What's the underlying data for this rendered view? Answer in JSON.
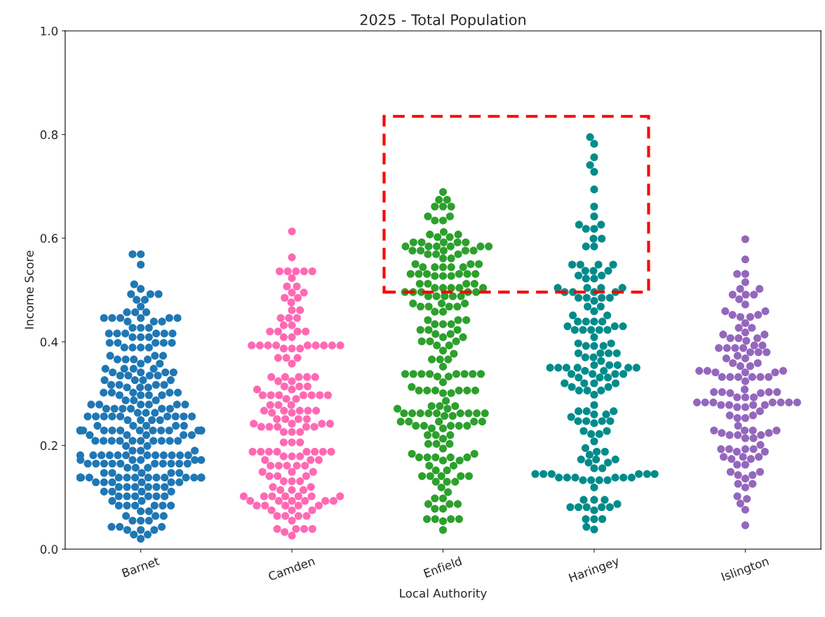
{
  "chart_data": {
    "type": "scatter",
    "title": "2025 - Total Population",
    "xlabel": "Local Authority",
    "ylabel": "Income Score",
    "categories": [
      "Barnet",
      "Camden",
      "Enfield",
      "Haringey",
      "Islington"
    ],
    "ylim": [
      0,
      1.0
    ],
    "yticks": [
      {
        "value": 0,
        "label": "0.0"
      },
      0.2,
      0.4,
      0.6,
      0.8,
      {
        "value": 1.0,
        "label": "1.0"
      }
    ],
    "marker": "circle",
    "series": [
      {
        "color": "#1f77b4",
        "x": [
          "Barnet",
          "Barnet",
          "Barnet",
          "Barnet",
          "Barnet",
          "Barnet",
          "Barnet",
          "Barnet",
          "Barnet",
          "Barnet",
          "Barnet",
          "Barnet",
          "Barnet",
          "Barnet",
          "Barnet",
          "Barnet",
          "Barnet",
          "Barnet",
          "Barnet",
          "Barnet",
          "Barnet",
          "Barnet",
          "Barnet",
          "Barnet",
          "Barnet",
          "Barnet",
          "Barnet",
          "Barnet",
          "Barnet",
          "Barnet",
          "Barnet",
          "Barnet",
          "Barnet",
          "Barnet",
          "Barnet",
          "Barnet",
          "Barnet",
          "Barnet",
          "Barnet",
          "Barnet",
          "Barnet",
          "Barnet",
          "Barnet",
          "Barnet",
          "Barnet",
          "Barnet",
          "Barnet",
          "Barnet",
          "Barnet",
          "Barnet",
          "Barnet",
          "Barnet",
          "Barnet",
          "Barnet",
          "Barnet",
          "Barnet",
          "Barnet",
          "Barnet",
          "Barnet",
          "Barnet",
          "Barnet",
          "Barnet",
          "Barnet",
          "Barnet",
          "Barnet",
          "Barnet",
          "Barnet",
          "Barnet",
          "Barnet",
          "Barnet",
          "Barnet",
          "Barnet",
          "Barnet",
          "Barnet",
          "Barnet",
          "Barnet",
          "Barnet",
          "Barnet",
          "Barnet",
          "Barnet",
          "Barnet",
          "Barnet",
          "Barnet",
          "Barnet",
          "Barnet",
          "Barnet",
          "Barnet",
          "Barnet",
          "Barnet",
          "Barnet",
          "Barnet",
          "Barnet",
          "Barnet",
          "Barnet",
          "Barnet",
          "Barnet",
          "Barnet",
          "Barnet",
          "Barnet",
          "Barnet",
          "Barnet",
          "Barnet",
          "Barnet",
          "Barnet",
          "Barnet",
          "Barnet",
          "Barnet",
          "Barnet",
          "Barnet",
          "Barnet",
          "Barnet",
          "Barnet",
          "Barnet",
          "Barnet",
          "Barnet",
          "Barnet",
          "Barnet",
          "Barnet",
          "Barnet",
          "Barnet",
          "Barnet",
          "Barnet",
          "Barnet",
          "Barnet",
          "Barnet",
          "Barnet",
          "Barnet",
          "Barnet",
          "Barnet",
          "Barnet",
          "Barnet",
          "Barnet",
          "Barnet",
          "Barnet",
          "Barnet",
          "Barnet",
          "Barnet",
          "Barnet",
          "Barnet",
          "Barnet",
          "Barnet",
          "Barnet",
          "Barnet",
          "Barnet",
          "Barnet",
          "Barnet",
          "Barnet",
          "Barnet",
          "Barnet",
          "Barnet",
          "Barnet",
          "Barnet",
          "Barnet",
          "Barnet",
          "Barnet",
          "Barnet",
          "Barnet",
          "Barnet",
          "Barnet",
          "Barnet",
          "Barnet",
          "Barnet",
          "Barnet",
          "Barnet",
          "Barnet",
          "Barnet",
          "Barnet",
          "Barnet",
          "Barnet",
          "Barnet",
          "Barnet",
          "Barnet",
          "Barnet",
          "Barnet",
          "Barnet",
          "Barnet",
          "Barnet",
          "Barnet",
          "Barnet",
          "Barnet",
          "Barnet",
          "Barnet",
          "Barnet",
          "Barnet",
          "Barnet",
          "Barnet",
          "Barnet",
          "Barnet",
          "Barnet",
          "Barnet",
          "Barnet",
          "Barnet",
          "Barnet",
          "Barnet",
          "Barnet",
          "Barnet",
          "Barnet",
          "Barnet",
          "Barnet",
          "Barnet",
          "Barnet",
          "Barnet",
          "Barnet",
          "Barnet",
          "Barnet",
          "Barnet",
          "Barnet",
          "Barnet",
          "Barnet",
          "Barnet",
          "Barnet",
          "Barnet",
          "Barnet",
          "Barnet",
          "Barnet",
          "Barnet",
          "Barnet",
          "Barnet",
          "Barnet",
          "Barnet",
          "Barnet",
          "Barnet",
          "Barnet",
          "Barnet",
          "Barnet",
          "Barnet",
          "Barnet",
          "Barnet",
          "Barnet",
          "Barnet",
          "Barnet",
          "Barnet",
          "Barnet",
          "Barnet",
          "Barnet",
          "Barnet",
          "Barnet",
          "Barnet",
          "Barnet",
          "Barnet",
          "Barnet",
          "Barnet",
          "Barnet",
          "Barnet",
          "Barnet",
          "Barnet",
          "Barnet",
          "Barnet",
          "Barnet",
          "Barnet",
          "Barnet",
          "Barnet",
          "Barnet",
          "Barnet"
        ],
        "values": [
          0.569,
          0.569,
          0.549,
          0.511,
          0.502,
          0.492,
          0.492,
          0.492,
          0.481,
          0.481,
          0.468,
          0.457,
          0.457,
          0.457,
          0.446,
          0.446,
          0.446,
          0.446,
          0.446,
          0.446,
          0.439,
          0.439,
          0.439,
          0.427,
          0.427,
          0.427,
          0.416,
          0.416,
          0.416,
          0.416,
          0.416,
          0.416,
          0.409,
          0.409,
          0.409,
          0.398,
          0.398,
          0.398,
          0.398,
          0.398,
          0.389,
          0.389,
          0.389,
          0.389,
          0.373,
          0.373,
          0.373,
          0.366,
          0.366,
          0.366,
          0.366,
          0.358,
          0.358,
          0.348,
          0.348,
          0.348,
          0.348,
          0.341,
          0.341,
          0.341,
          0.341,
          0.335,
          0.335,
          0.335,
          0.335,
          0.326,
          0.326,
          0.326,
          0.326,
          0.317,
          0.317,
          0.317,
          0.317,
          0.312,
          0.312,
          0.312,
          0.302,
          0.302,
          0.302,
          0.302,
          0.302,
          0.297,
          0.297,
          0.297,
          0.297,
          0.287,
          0.287,
          0.287,
          0.279,
          0.279,
          0.279,
          0.279,
          0.279,
          0.279,
          0.271,
          0.271,
          0.271,
          0.271,
          0.271,
          0.271,
          0.263,
          0.263,
          0.263,
          0.256,
          0.256,
          0.256,
          0.256,
          0.256,
          0.256,
          0.256,
          0.256,
          0.256,
          0.249,
          0.249,
          0.249,
          0.249,
          0.238,
          0.238,
          0.238,
          0.238,
          0.238,
          0.229,
          0.229,
          0.229,
          0.229,
          0.229,
          0.229,
          0.229,
          0.229,
          0.229,
          0.229,
          0.229,
          0.229,
          0.229,
          0.229,
          0.229,
          0.22,
          0.22,
          0.22,
          0.22,
          0.22,
          0.209,
          0.209,
          0.209,
          0.209,
          0.209,
          0.209,
          0.209,
          0.209,
          0.209,
          0.209,
          0.199,
          0.199,
          0.19,
          0.19,
          0.19,
          0.181,
          0.181,
          0.181,
          0.181,
          0.181,
          0.181,
          0.181,
          0.181,
          0.181,
          0.181,
          0.181,
          0.181,
          0.172,
          0.172,
          0.172,
          0.172,
          0.172,
          0.165,
          0.165,
          0.165,
          0.165,
          0.165,
          0.165,
          0.165,
          0.165,
          0.165,
          0.165,
          0.157,
          0.157,
          0.157,
          0.147,
          0.147,
          0.147,
          0.147,
          0.147,
          0.138,
          0.138,
          0.138,
          0.138,
          0.138,
          0.138,
          0.138,
          0.138,
          0.138,
          0.138,
          0.138,
          0.138,
          0.138,
          0.138,
          0.138,
          0.138,
          0.129,
          0.129,
          0.129,
          0.129,
          0.129,
          0.129,
          0.12,
          0.12,
          0.12,
          0.12,
          0.12,
          0.12,
          0.111,
          0.111,
          0.111,
          0.111,
          0.102,
          0.102,
          0.102,
          0.102,
          0.102,
          0.102,
          0.093,
          0.093,
          0.084,
          0.084,
          0.084,
          0.084,
          0.084,
          0.084,
          0.073,
          0.073,
          0.064,
          0.064,
          0.064,
          0.055,
          0.055,
          0.055,
          0.043,
          0.043,
          0.043,
          0.037,
          0.037,
          0.037,
          0.028,
          0.028,
          0.02
        ]
      },
      {
        "color": "#ff69b4",
        "x": [
          "Camden",
          "Camden",
          "Camden",
          "Camden",
          "Camden",
          "Camden",
          "Camden",
          "Camden",
          "Camden",
          "Camden",
          "Camden",
          "Camden",
          "Camden",
          "Camden",
          "Camden",
          "Camden",
          "Camden",
          "Camden",
          "Camden",
          "Camden",
          "Camden",
          "Camden",
          "Camden",
          "Camden",
          "Camden",
          "Camden",
          "Camden",
          "Camden",
          "Camden",
          "Camden",
          "Camden",
          "Camden",
          "Camden",
          "Camden",
          "Camden",
          "Camden",
          "Camden",
          "Camden",
          "Camden",
          "Camden",
          "Camden",
          "Camden",
          "Camden",
          "Camden",
          "Camden",
          "Camden",
          "Camden",
          "Camden",
          "Camden",
          "Camden",
          "Camden",
          "Camden",
          "Camden",
          "Camden",
          "Camden",
          "Camden",
          "Camden",
          "Camden",
          "Camden",
          "Camden",
          "Camden",
          "Camden",
          "Camden",
          "Camden",
          "Camden",
          "Camden",
          "Camden",
          "Camden",
          "Camden",
          "Camden",
          "Camden",
          "Camden",
          "Camden",
          "Camden",
          "Camden",
          "Camden",
          "Camden",
          "Camden",
          "Camden",
          "Camden",
          "Camden",
          "Camden",
          "Camden",
          "Camden",
          "Camden",
          "Camden",
          "Camden",
          "Camden",
          "Camden",
          "Camden",
          "Camden",
          "Camden",
          "Camden",
          "Camden",
          "Camden",
          "Camden",
          "Camden",
          "Camden",
          "Camden",
          "Camden",
          "Camden",
          "Camden",
          "Camden",
          "Camden",
          "Camden",
          "Camden",
          "Camden",
          "Camden",
          "Camden",
          "Camden",
          "Camden",
          "Camden",
          "Camden",
          "Camden",
          "Camden",
          "Camden",
          "Camden",
          "Camden",
          "Camden",
          "Camden",
          "Camden",
          "Camden",
          "Camden",
          "Camden",
          "Camden",
          "Camden",
          "Camden",
          "Camden",
          "Camden",
          "Camden",
          "Camden",
          "Camden",
          "Camden",
          "Camden",
          "Camden",
          "Camden",
          "Camden",
          "Camden",
          "Camden",
          "Camden",
          "Camden",
          "Camden",
          "Camden",
          "Camden",
          "Camden",
          "Camden",
          "Camden",
          "Camden",
          "Camden",
          "Camden",
          "Camden",
          "Camden",
          "Camden",
          "Camden",
          "Camden",
          "Camden",
          "Camden",
          "Camden",
          "Camden"
        ],
        "values": [
          0.613,
          0.563,
          0.536,
          0.536,
          0.536,
          0.536,
          0.536,
          0.523,
          0.507,
          0.507,
          0.495,
          0.495,
          0.485,
          0.485,
          0.476,
          0.461,
          0.461,
          0.446,
          0.446,
          0.446,
          0.432,
          0.432,
          0.42,
          0.42,
          0.42,
          0.42,
          0.409,
          0.409,
          0.393,
          0.393,
          0.393,
          0.393,
          0.393,
          0.393,
          0.393,
          0.393,
          0.393,
          0.387,
          0.387,
          0.387,
          0.369,
          0.369,
          0.369,
          0.358,
          0.332,
          0.332,
          0.332,
          0.332,
          0.332,
          0.324,
          0.324,
          0.314,
          0.314,
          0.314,
          0.308,
          0.308,
          0.297,
          0.297,
          0.297,
          0.297,
          0.297,
          0.297,
          0.297,
          0.29,
          0.29,
          0.278,
          0.278,
          0.278,
          0.267,
          0.267,
          0.267,
          0.267,
          0.267,
          0.263,
          0.263,
          0.251,
          0.251,
          0.251,
          0.251,
          0.242,
          0.242,
          0.242,
          0.242,
          0.236,
          0.236,
          0.236,
          0.236,
          0.236,
          0.226,
          0.226,
          0.226,
          0.206,
          0.206,
          0.206,
          0.188,
          0.188,
          0.188,
          0.188,
          0.188,
          0.188,
          0.188,
          0.188,
          0.179,
          0.179,
          0.179,
          0.172,
          0.172,
          0.172,
          0.161,
          0.161,
          0.161,
          0.161,
          0.161,
          0.149,
          0.149,
          0.149,
          0.141,
          0.141,
          0.141,
          0.131,
          0.131,
          0.131,
          0.12,
          0.12,
          0.114,
          0.114,
          0.114,
          0.102,
          0.102,
          0.102,
          0.102,
          0.102,
          0.102,
          0.102,
          0.093,
          0.093,
          0.093,
          0.093,
          0.093,
          0.093,
          0.084,
          0.084,
          0.084,
          0.084,
          0.084,
          0.075,
          0.075,
          0.075,
          0.064,
          0.064,
          0.064,
          0.064,
          0.055,
          0.039,
          0.039,
          0.039,
          0.039,
          0.033,
          0.026
        ]
      },
      {
        "color": "#2ca02c",
        "x": [
          "Enfield",
          "Enfield",
          "Enfield",
          "Enfield",
          "Enfield",
          "Enfield",
          "Enfield",
          "Enfield",
          "Enfield",
          "Enfield",
          "Enfield",
          "Enfield",
          "Enfield",
          "Enfield",
          "Enfield",
          "Enfield",
          "Enfield",
          "Enfield",
          "Enfield",
          "Enfield",
          "Enfield",
          "Enfield",
          "Enfield",
          "Enfield",
          "Enfield",
          "Enfield",
          "Enfield",
          "Enfield",
          "Enfield",
          "Enfield",
          "Enfield",
          "Enfield",
          "Enfield",
          "Enfield",
          "Enfield",
          "Enfield",
          "Enfield",
          "Enfield",
          "Enfield",
          "Enfield",
          "Enfield",
          "Enfield",
          "Enfield",
          "Enfield",
          "Enfield",
          "Enfield",
          "Enfield",
          "Enfield",
          "Enfield",
          "Enfield",
          "Enfield",
          "Enfield",
          "Enfield",
          "Enfield",
          "Enfield",
          "Enfield",
          "Enfield",
          "Enfield",
          "Enfield",
          "Enfield",
          "Enfield",
          "Enfield",
          "Enfield",
          "Enfield",
          "Enfield",
          "Enfield",
          "Enfield",
          "Enfield",
          "Enfield",
          "Enfield",
          "Enfield",
          "Enfield",
          "Enfield",
          "Enfield",
          "Enfield",
          "Enfield",
          "Enfield",
          "Enfield",
          "Enfield",
          "Enfield",
          "Enfield",
          "Enfield",
          "Enfield",
          "Enfield",
          "Enfield",
          "Enfield",
          "Enfield",
          "Enfield",
          "Enfield",
          "Enfield",
          "Enfield",
          "Enfield",
          "Enfield",
          "Enfield",
          "Enfield",
          "Enfield",
          "Enfield",
          "Enfield",
          "Enfield",
          "Enfield",
          "Enfield",
          "Enfield",
          "Enfield",
          "Enfield",
          "Enfield",
          "Enfield",
          "Enfield",
          "Enfield",
          "Enfield",
          "Enfield",
          "Enfield",
          "Enfield",
          "Enfield",
          "Enfield",
          "Enfield",
          "Enfield",
          "Enfield",
          "Enfield",
          "Enfield",
          "Enfield",
          "Enfield",
          "Enfield",
          "Enfield",
          "Enfield",
          "Enfield",
          "Enfield",
          "Enfield",
          "Enfield",
          "Enfield",
          "Enfield",
          "Enfield",
          "Enfield",
          "Enfield",
          "Enfield",
          "Enfield",
          "Enfield",
          "Enfield",
          "Enfield",
          "Enfield",
          "Enfield",
          "Enfield",
          "Enfield",
          "Enfield",
          "Enfield",
          "Enfield",
          "Enfield",
          "Enfield",
          "Enfield",
          "Enfield",
          "Enfield",
          "Enfield",
          "Enfield",
          "Enfield",
          "Enfield",
          "Enfield",
          "Enfield",
          "Enfield",
          "Enfield",
          "Enfield",
          "Enfield",
          "Enfield",
          "Enfield",
          "Enfield",
          "Enfield",
          "Enfield",
          "Enfield",
          "Enfield",
          "Enfield",
          "Enfield",
          "Enfield",
          "Enfield",
          "Enfield",
          "Enfield",
          "Enfield",
          "Enfield",
          "Enfield",
          "Enfield",
          "Enfield",
          "Enfield",
          "Enfield",
          "Enfield",
          "Enfield",
          "Enfield",
          "Enfield",
          "Enfield",
          "Enfield",
          "Enfield",
          "Enfield",
          "Enfield",
          "Enfield",
          "Enfield",
          "Enfield",
          "Enfield",
          "Enfield",
          "Enfield",
          "Enfield",
          "Enfield",
          "Enfield"
        ],
        "values": [
          0.689,
          0.674,
          0.674,
          0.661,
          0.661,
          0.661,
          0.642,
          0.642,
          0.634,
          0.634,
          0.612,
          0.607,
          0.607,
          0.602,
          0.602,
          0.592,
          0.592,
          0.592,
          0.592,
          0.592,
          0.584,
          0.584,
          0.584,
          0.584,
          0.584,
          0.584,
          0.576,
          0.576,
          0.576,
          0.576,
          0.576,
          0.569,
          0.569,
          0.569,
          0.561,
          0.561,
          0.55,
          0.55,
          0.55,
          0.544,
          0.544,
          0.544,
          0.544,
          0.544,
          0.531,
          0.531,
          0.531,
          0.531,
          0.531,
          0.531,
          0.527,
          0.527,
          0.527,
          0.512,
          0.512,
          0.512,
          0.512,
          0.504,
          0.504,
          0.504,
          0.504,
          0.504,
          0.496,
          0.496,
          0.496,
          0.496,
          0.496,
          0.488,
          0.488,
          0.488,
          0.488,
          0.488,
          0.474,
          0.474,
          0.474,
          0.468,
          0.468,
          0.468,
          0.468,
          0.458,
          0.458,
          0.442,
          0.442,
          0.442,
          0.434,
          0.434,
          0.434,
          0.423,
          0.423,
          0.423,
          0.415,
          0.415,
          0.409,
          0.409,
          0.401,
          0.401,
          0.401,
          0.393,
          0.393,
          0.383,
          0.377,
          0.366,
          0.366,
          0.366,
          0.352,
          0.338,
          0.338,
          0.338,
          0.338,
          0.338,
          0.338,
          0.338,
          0.338,
          0.333,
          0.333,
          0.322,
          0.313,
          0.306,
          0.306,
          0.306,
          0.306,
          0.306,
          0.306,
          0.301,
          0.301,
          0.286,
          0.276,
          0.276,
          0.276,
          0.271,
          0.271,
          0.262,
          0.262,
          0.262,
          0.262,
          0.262,
          0.262,
          0.262,
          0.262,
          0.262,
          0.257,
          0.257,
          0.246,
          0.246,
          0.246,
          0.246,
          0.246,
          0.238,
          0.238,
          0.238,
          0.238,
          0.238,
          0.233,
          0.233,
          0.22,
          0.22,
          0.22,
          0.213,
          0.203,
          0.203,
          0.203,
          0.194,
          0.184,
          0.184,
          0.177,
          0.177,
          0.177,
          0.177,
          0.177,
          0.171,
          0.171,
          0.161,
          0.161,
          0.152,
          0.152,
          0.141,
          0.141,
          0.141,
          0.141,
          0.141,
          0.13,
          0.13,
          0.13,
          0.119,
          0.11,
          0.098,
          0.098,
          0.087,
          0.087,
          0.087,
          0.078,
          0.078,
          0.058,
          0.058,
          0.058,
          0.058,
          0.054,
          0.037
        ]
      },
      {
        "color": "#008b8b",
        "x": [
          "Haringey",
          "Haringey",
          "Haringey",
          "Haringey",
          "Haringey",
          "Haringey",
          "Haringey",
          "Haringey",
          "Haringey",
          "Haringey",
          "Haringey",
          "Haringey",
          "Haringey",
          "Haringey",
          "Haringey",
          "Haringey",
          "Haringey",
          "Haringey",
          "Haringey",
          "Haringey",
          "Haringey",
          "Haringey",
          "Haringey",
          "Haringey",
          "Haringey",
          "Haringey",
          "Haringey",
          "Haringey",
          "Haringey",
          "Haringey",
          "Haringey",
          "Haringey",
          "Haringey",
          "Haringey",
          "Haringey",
          "Haringey",
          "Haringey",
          "Haringey",
          "Haringey",
          "Haringey",
          "Haringey",
          "Haringey",
          "Haringey",
          "Haringey",
          "Haringey",
          "Haringey",
          "Haringey",
          "Haringey",
          "Haringey",
          "Haringey",
          "Haringey",
          "Haringey",
          "Haringey",
          "Haringey",
          "Haringey",
          "Haringey",
          "Haringey",
          "Haringey",
          "Haringey",
          "Haringey",
          "Haringey",
          "Haringey",
          "Haringey",
          "Haringey",
          "Haringey",
          "Haringey",
          "Haringey",
          "Haringey",
          "Haringey",
          "Haringey",
          "Haringey",
          "Haringey",
          "Haringey",
          "Haringey",
          "Haringey",
          "Haringey",
          "Haringey",
          "Haringey",
          "Haringey",
          "Haringey",
          "Haringey",
          "Haringey",
          "Haringey",
          "Haringey",
          "Haringey",
          "Haringey",
          "Haringey",
          "Haringey",
          "Haringey",
          "Haringey",
          "Haringey",
          "Haringey",
          "Haringey",
          "Haringey",
          "Haringey",
          "Haringey",
          "Haringey",
          "Haringey",
          "Haringey",
          "Haringey",
          "Haringey",
          "Haringey",
          "Haringey",
          "Haringey",
          "Haringey",
          "Haringey",
          "Haringey",
          "Haringey",
          "Haringey",
          "Haringey",
          "Haringey",
          "Haringey",
          "Haringey",
          "Haringey",
          "Haringey",
          "Haringey",
          "Haringey",
          "Haringey",
          "Haringey",
          "Haringey",
          "Haringey",
          "Haringey",
          "Haringey",
          "Haringey",
          "Haringey",
          "Haringey",
          "Haringey",
          "Haringey",
          "Haringey",
          "Haringey",
          "Haringey",
          "Haringey",
          "Haringey",
          "Haringey",
          "Haringey",
          "Haringey",
          "Haringey",
          "Haringey",
          "Haringey",
          "Haringey",
          "Haringey",
          "Haringey",
          "Haringey",
          "Haringey",
          "Haringey",
          "Haringey",
          "Haringey",
          "Haringey",
          "Haringey",
          "Haringey",
          "Haringey",
          "Haringey",
          "Haringey",
          "Haringey",
          "Haringey",
          "Haringey",
          "Haringey",
          "Haringey"
        ],
        "values": [
          0.795,
          0.782,
          0.756,
          0.741,
          0.728,
          0.694,
          0.661,
          0.642,
          0.626,
          0.626,
          0.618,
          0.618,
          0.599,
          0.599,
          0.584,
          0.584,
          0.549,
          0.549,
          0.549,
          0.549,
          0.537,
          0.537,
          0.537,
          0.528,
          0.528,
          0.522,
          0.522,
          0.504,
          0.504,
          0.504,
          0.504,
          0.496,
          0.496,
          0.496,
          0.496,
          0.485,
          0.485,
          0.485,
          0.485,
          0.479,
          0.468,
          0.468,
          0.459,
          0.451,
          0.451,
          0.439,
          0.439,
          0.439,
          0.439,
          0.43,
          0.43,
          0.43,
          0.423,
          0.423,
          0.423,
          0.423,
          0.423,
          0.409,
          0.397,
          0.397,
          0.392,
          0.392,
          0.392,
          0.378,
          0.378,
          0.378,
          0.378,
          0.37,
          0.37,
          0.363,
          0.355,
          0.355,
          0.355,
          0.35,
          0.35,
          0.35,
          0.35,
          0.35,
          0.35,
          0.344,
          0.344,
          0.338,
          0.338,
          0.338,
          0.338,
          0.331,
          0.331,
          0.331,
          0.32,
          0.32,
          0.32,
          0.32,
          0.313,
          0.313,
          0.306,
          0.306,
          0.306,
          0.298,
          0.278,
          0.266,
          0.266,
          0.266,
          0.26,
          0.26,
          0.255,
          0.247,
          0.247,
          0.247,
          0.247,
          0.243,
          0.228,
          0.228,
          0.222,
          0.222,
          0.208,
          0.195,
          0.188,
          0.188,
          0.182,
          0.173,
          0.173,
          0.173,
          0.167,
          0.167,
          0.156,
          0.156,
          0.145,
          0.145,
          0.145,
          0.145,
          0.145,
          0.145,
          0.138,
          0.138,
          0.138,
          0.138,
          0.138,
          0.138,
          0.133,
          0.133,
          0.133,
          0.133,
          0.119,
          0.095,
          0.095,
          0.095,
          0.087,
          0.081,
          0.081,
          0.081,
          0.081,
          0.081,
          0.075,
          0.058,
          0.058,
          0.058,
          0.043,
          0.038
        ]
      },
      {
        "color": "#9467bd",
        "x": [
          "Islington",
          "Islington",
          "Islington",
          "Islington",
          "Islington",
          "Islington",
          "Islington",
          "Islington",
          "Islington",
          "Islington",
          "Islington",
          "Islington",
          "Islington",
          "Islington",
          "Islington",
          "Islington",
          "Islington",
          "Islington",
          "Islington",
          "Islington",
          "Islington",
          "Islington",
          "Islington",
          "Islington",
          "Islington",
          "Islington",
          "Islington",
          "Islington",
          "Islington",
          "Islington",
          "Islington",
          "Islington",
          "Islington",
          "Islington",
          "Islington",
          "Islington",
          "Islington",
          "Islington",
          "Islington",
          "Islington",
          "Islington",
          "Islington",
          "Islington",
          "Islington",
          "Islington",
          "Islington",
          "Islington",
          "Islington",
          "Islington",
          "Islington",
          "Islington",
          "Islington",
          "Islington",
          "Islington",
          "Islington",
          "Islington",
          "Islington",
          "Islington",
          "Islington",
          "Islington",
          "Islington",
          "Islington",
          "Islington",
          "Islington",
          "Islington",
          "Islington",
          "Islington",
          "Islington",
          "Islington",
          "Islington",
          "Islington",
          "Islington",
          "Islington",
          "Islington",
          "Islington",
          "Islington",
          "Islington",
          "Islington",
          "Islington",
          "Islington",
          "Islington",
          "Islington",
          "Islington",
          "Islington",
          "Islington",
          "Islington",
          "Islington",
          "Islington",
          "Islington",
          "Islington",
          "Islington",
          "Islington",
          "Islington",
          "Islington",
          "Islington",
          "Islington",
          "Islington",
          "Islington",
          "Islington",
          "Islington",
          "Islington",
          "Islington",
          "Islington",
          "Islington",
          "Islington",
          "Islington",
          "Islington",
          "Islington",
          "Islington",
          "Islington",
          "Islington",
          "Islington",
          "Islington",
          "Islington",
          "Islington",
          "Islington",
          "Islington",
          "Islington",
          "Islington",
          "Islington",
          "Islington",
          "Islington",
          "Islington",
          "Islington"
        ],
        "values": [
          0.598,
          0.559,
          0.531,
          0.531,
          0.515,
          0.502,
          0.502,
          0.491,
          0.491,
          0.491,
          0.482,
          0.472,
          0.459,
          0.459,
          0.452,
          0.452,
          0.448,
          0.448,
          0.436,
          0.427,
          0.427,
          0.418,
          0.414,
          0.414,
          0.407,
          0.407,
          0.407,
          0.402,
          0.393,
          0.393,
          0.388,
          0.388,
          0.388,
          0.388,
          0.38,
          0.38,
          0.38,
          0.373,
          0.368,
          0.368,
          0.359,
          0.359,
          0.353,
          0.353,
          0.344,
          0.344,
          0.344,
          0.341,
          0.341,
          0.341,
          0.332,
          0.332,
          0.332,
          0.332,
          0.332,
          0.332,
          0.324,
          0.308,
          0.303,
          0.303,
          0.303,
          0.303,
          0.301,
          0.301,
          0.293,
          0.293,
          0.293,
          0.283,
          0.283,
          0.283,
          0.283,
          0.283,
          0.283,
          0.283,
          0.278,
          0.278,
          0.278,
          0.278,
          0.274,
          0.274,
          0.266,
          0.258,
          0.258,
          0.253,
          0.253,
          0.238,
          0.229,
          0.229,
          0.229,
          0.229,
          0.224,
          0.224,
          0.22,
          0.22,
          0.22,
          0.214,
          0.214,
          0.201,
          0.193,
          0.193,
          0.193,
          0.193,
          0.188,
          0.188,
          0.178,
          0.178,
          0.178,
          0.174,
          0.174,
          0.163,
          0.163,
          0.149,
          0.149,
          0.143,
          0.143,
          0.136,
          0.126,
          0.126,
          0.119,
          0.102,
          0.097,
          0.088,
          0.076,
          0.046
        ]
      }
    ]
  }
}
